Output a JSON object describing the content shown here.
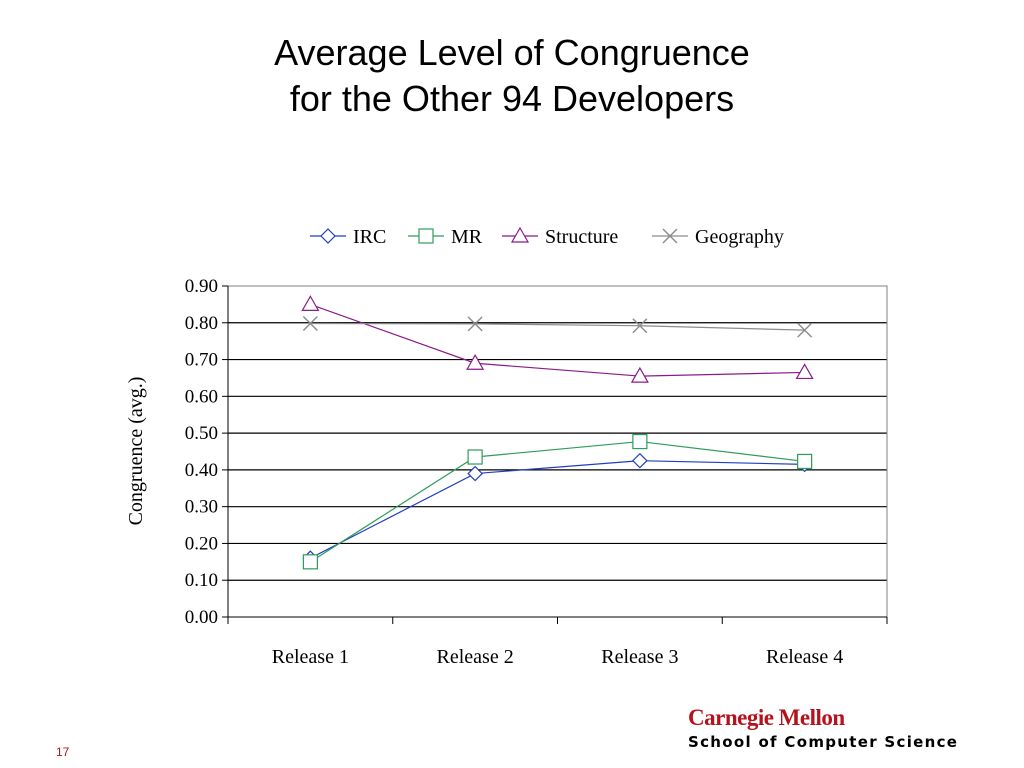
{
  "slide": {
    "title_line1": "Average Level of Congruence",
    "title_line2": "for the Other 94 Developers",
    "page_number": "17"
  },
  "logo": {
    "name": "Carnegie Mellon",
    "subtitle": "School of Computer Science",
    "color": "#b5121b"
  },
  "chart_data": {
    "type": "line",
    "categories": [
      "Release 1",
      "Release 2",
      "Release 3",
      "Release 4"
    ],
    "ylabel": "Congruence (avg.)",
    "xlabel": "",
    "ylim": [
      0,
      0.9
    ],
    "yticks": [
      "0.00",
      "0.10",
      "0.20",
      "0.30",
      "0.40",
      "0.50",
      "0.60",
      "0.70",
      "0.80",
      "0.90"
    ],
    "grid": true,
    "legend_position": "top",
    "series": [
      {
        "name": "IRC",
        "values": [
          0.16,
          0.39,
          0.425,
          0.415
        ],
        "color": "#1f3fbf",
        "marker": "diamond"
      },
      {
        "name": "MR",
        "values": [
          0.15,
          0.435,
          0.477,
          0.423
        ],
        "color": "#2e9c5a",
        "marker": "square"
      },
      {
        "name": "Structure",
        "values": [
          0.85,
          0.69,
          0.655,
          0.665
        ],
        "color": "#8b1a8b",
        "marker": "triangle"
      },
      {
        "name": "Geography",
        "values": [
          0.798,
          0.797,
          0.792,
          0.78
        ],
        "color": "#8c8c8c",
        "marker": "x"
      }
    ]
  }
}
